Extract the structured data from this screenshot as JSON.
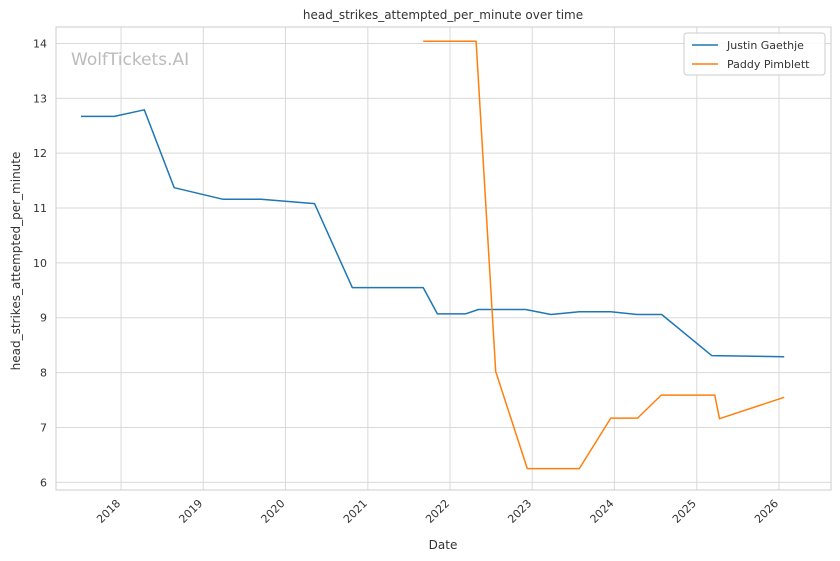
{
  "chart_data": {
    "type": "line",
    "title": "head_strikes_attempted_per_minute over time",
    "xlabel": "Date",
    "ylabel": "head_strikes_attempted_per_minute",
    "x_ticks": [
      "2018",
      "2019",
      "2020",
      "2021",
      "2022",
      "2023",
      "2024",
      "2025",
      "2026"
    ],
    "y_ticks": [
      "6",
      "7",
      "8",
      "9",
      "10",
      "11",
      "12",
      "13",
      "14"
    ],
    "xlim": [
      "2017-03-18",
      "2026-08-20"
    ],
    "ylim": [
      5.86,
      14.3
    ],
    "grid": true,
    "legend_position": "top-right",
    "watermark": "WolfTickets.AI",
    "series": [
      {
        "name": "Justin Gaethje",
        "color": "#1f77b4",
        "points": [
          {
            "date": "2017-07-07",
            "value": 12.67
          },
          {
            "date": "2017-12-02",
            "value": 12.67
          },
          {
            "date": "2018-04-14",
            "value": 12.79
          },
          {
            "date": "2018-08-25",
            "value": 11.37
          },
          {
            "date": "2019-03-30",
            "value": 11.16
          },
          {
            "date": "2019-09-14",
            "value": 11.16
          },
          {
            "date": "2020-05-09",
            "value": 11.08
          },
          {
            "date": "2020-10-24",
            "value": 9.55
          },
          {
            "date": "2021-09-04",
            "value": 9.55
          },
          {
            "date": "2021-11-06",
            "value": 9.07
          },
          {
            "date": "2022-03-10",
            "value": 9.07
          },
          {
            "date": "2022-05-07",
            "value": 9.15
          },
          {
            "date": "2022-12-03",
            "value": 9.15
          },
          {
            "date": "2023-03-25",
            "value": 9.06
          },
          {
            "date": "2023-07-29",
            "value": 9.11
          },
          {
            "date": "2023-12-16",
            "value": 9.11
          },
          {
            "date": "2024-04-13",
            "value": 9.06
          },
          {
            "date": "2024-07-29",
            "value": 9.06
          },
          {
            "date": "2025-03-08",
            "value": 8.31
          },
          {
            "date": "2026-01-24",
            "value": 8.29
          }
        ]
      },
      {
        "name": "Paddy Pimblett",
        "color": "#ff7f0e",
        "points": [
          {
            "date": "2021-09-04",
            "value": 14.04
          },
          {
            "date": "2022-04-27",
            "value": 14.04
          },
          {
            "date": "2022-07-23",
            "value": 8.02
          },
          {
            "date": "2022-12-10",
            "value": 6.25
          },
          {
            "date": "2023-07-29",
            "value": 6.25
          },
          {
            "date": "2023-12-16",
            "value": 7.17
          },
          {
            "date": "2024-04-13",
            "value": 7.17
          },
          {
            "date": "2024-07-27",
            "value": 7.59
          },
          {
            "date": "2025-03-22",
            "value": 7.59
          },
          {
            "date": "2025-04-12",
            "value": 7.16
          },
          {
            "date": "2026-01-24",
            "value": 7.55
          }
        ]
      }
    ]
  }
}
